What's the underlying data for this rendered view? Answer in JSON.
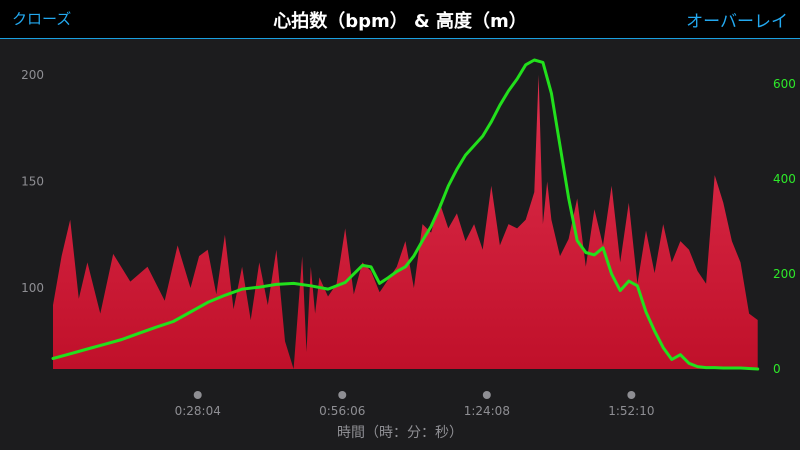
{
  "header": {
    "close_label": "クローズ",
    "title": "心拍数（bpm） & 高度（m）",
    "overlay_label": "オーバーレイ"
  },
  "colors": {
    "background": "#1c1c1e",
    "header_bg": "#000000",
    "accent": "#23a9f0",
    "hr_fill_top": "#e0304e",
    "hr_fill_bottom": "#c0102a",
    "altitude_line": "#22e01c",
    "axis_text": "#8e8e93",
    "right_axis_text": "#2ee82a"
  },
  "chart_data": {
    "type": "area",
    "xlabel": "時間（時：分：秒）",
    "x_ticks": [
      "0:28:04",
      "0:56:06",
      "1:24:08",
      "1:52:10"
    ],
    "x_ticks_seconds": [
      1684,
      3366,
      5048,
      6730
    ],
    "x_range_seconds": [
      0,
      8250
    ],
    "left_axis": {
      "ticks": [
        100,
        150,
        200
      ],
      "range": [
        62,
        207
      ]
    },
    "right_axis": {
      "ticks": [
        0,
        200,
        400,
        600
      ],
      "range": [
        0,
        650
      ]
    },
    "grid": false,
    "series": [
      {
        "name": "心拍数",
        "axis": "left",
        "style": "area",
        "x": [
          0,
          100,
          200,
          300,
          400,
          550,
          700,
          900,
          1100,
          1300,
          1450,
          1600,
          1700,
          1800,
          1900,
          2000,
          2100,
          2200,
          2300,
          2400,
          2500,
          2600,
          2700,
          2800,
          2900,
          2950,
          3000,
          3050,
          3100,
          3200,
          3300,
          3400,
          3500,
          3600,
          3700,
          3800,
          3900,
          4000,
          4100,
          4200,
          4300,
          4400,
          4500,
          4600,
          4700,
          4800,
          4900,
          5000,
          5100,
          5200,
          5300,
          5400,
          5500,
          5600,
          5650,
          5700,
          5750,
          5800,
          5900,
          6000,
          6100,
          6200,
          6300,
          6400,
          6500,
          6600,
          6700,
          6800,
          6900,
          7000,
          7100,
          7200,
          7300,
          7400,
          7500,
          7600,
          7700,
          7800,
          7900,
          8000,
          8100,
          8200
        ],
        "values": [
          92,
          115,
          132,
          95,
          112,
          88,
          116,
          103,
          110,
          94,
          120,
          100,
          115,
          118,
          97,
          125,
          90,
          110,
          85,
          112,
          92,
          118,
          75,
          62,
          115,
          70,
          110,
          88,
          105,
          96,
          102,
          128,
          97,
          112,
          108,
          98,
          104,
          110,
          122,
          100,
          130,
          126,
          140,
          128,
          135,
          122,
          130,
          118,
          148,
          120,
          130,
          128,
          132,
          145,
          200,
          130,
          150,
          132,
          115,
          123,
          142,
          110,
          137,
          120,
          148,
          112,
          140,
          102,
          127,
          107,
          130,
          112,
          122,
          118,
          108,
          102,
          153,
          140,
          122,
          112,
          88,
          85
        ]
      },
      {
        "name": "高度",
        "axis": "right",
        "style": "line",
        "x": [
          0,
          200,
          400,
          600,
          800,
          1000,
          1200,
          1400,
          1600,
          1800,
          2000,
          2200,
          2400,
          2600,
          2800,
          3000,
          3200,
          3400,
          3500,
          3600,
          3700,
          3800,
          3900,
          4000,
          4100,
          4200,
          4300,
          4400,
          4500,
          4600,
          4700,
          4800,
          4900,
          5000,
          5100,
          5200,
          5300,
          5400,
          5500,
          5600,
          5700,
          5800,
          5900,
          6000,
          6100,
          6200,
          6300,
          6400,
          6500,
          6600,
          6700,
          6800,
          6900,
          7000,
          7100,
          7200,
          7300,
          7400,
          7500,
          7600,
          7700,
          7800,
          7900,
          8000,
          8100,
          8200
        ],
        "values": [
          22,
          32,
          42,
          52,
          62,
          75,
          88,
          100,
          120,
          140,
          155,
          168,
          172,
          178,
          180,
          175,
          168,
          182,
          200,
          218,
          215,
          180,
          192,
          205,
          215,
          238,
          270,
          300,
          340,
          385,
          420,
          450,
          470,
          490,
          520,
          555,
          585,
          610,
          640,
          650,
          645,
          580,
          470,
          360,
          270,
          245,
          240,
          255,
          200,
          165,
          185,
          175,
          120,
          80,
          45,
          20,
          30,
          12,
          5,
          3,
          3,
          2,
          2,
          2,
          1,
          0
        ]
      }
    ]
  }
}
